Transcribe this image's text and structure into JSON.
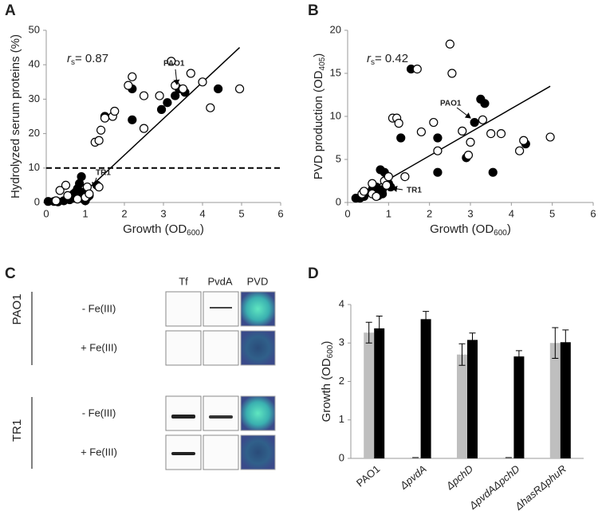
{
  "panel_labels": [
    "A",
    "B",
    "C",
    "D"
  ],
  "chart_data": [
    {
      "type": "scatter",
      "y_label": "Hydrolyzed serum proteins (%)",
      "x_label": [
        "Growth (OD",
        "600",
        ")"
      ],
      "stat": [
        "r",
        "s",
        "= 0.87"
      ],
      "annotations": [
        "PAO1",
        "TR1"
      ],
      "xlim": [
        0,
        6
      ],
      "xticks": [
        0,
        1,
        2,
        3,
        4,
        5,
        6
      ],
      "ylim": [
        0,
        50
      ],
      "yticks": [
        0,
        10,
        20,
        30,
        40,
        50
      ],
      "hline": 10,
      "fit_line": {
        "x": [
          0.7,
          4.95
        ],
        "y": [
          0,
          45
        ]
      },
      "series": [
        {
          "color": "#000000",
          "edgecolor": "#000000",
          "x": [
            0.05,
            0.2,
            0.3,
            0.45,
            0.6,
            0.7,
            0.75,
            0.8,
            0.85,
            0.9,
            0.9,
            0.95,
            1.0,
            1.05,
            1.1,
            1.3,
            1.5,
            2.2,
            2.2,
            2.95,
            3.1,
            3.3,
            3.4,
            3.55,
            4.4,
            0.8,
            0.7,
            1.0
          ],
          "values": [
            0.3,
            0.3,
            0.2,
            0.5,
            0.8,
            2,
            3,
            4,
            5.5,
            7.5,
            3,
            1,
            2,
            1.5,
            2,
            5,
            25,
            24,
            33,
            27,
            29,
            31,
            33,
            32,
            33,
            1.5,
            2.5,
            0.5
          ]
        },
        {
          "color": "#ffffff",
          "edgecolor": "#000000",
          "x": [
            0.25,
            0.35,
            0.5,
            0.55,
            0.8,
            1.0,
            1.05,
            1.25,
            1.35,
            1.4,
            1.5,
            1.7,
            1.75,
            2.1,
            2.2,
            2.5,
            2.5,
            2.9,
            3.2,
            3.3,
            3.5,
            3.7,
            4.0,
            4.2,
            4.95,
            1.35,
            1.1
          ],
          "values": [
            0.5,
            3.5,
            5,
            2,
            1,
            1.5,
            4.5,
            17.5,
            18,
            21,
            24.5,
            25,
            26.5,
            34,
            36.5,
            21.5,
            31,
            31,
            41,
            34,
            33,
            37.5,
            35,
            27.5,
            33,
            4.5,
            2.5
          ]
        }
      ]
    },
    {
      "type": "scatter",
      "y_label": [
        "PVD production (OD",
        "405",
        ")"
      ],
      "x_label": [
        "Growth (OD",
        "600",
        ")"
      ],
      "stat": [
        "r",
        "s",
        "= 0.42"
      ],
      "annotations": [
        "PAO1",
        "TR1"
      ],
      "xlim": [
        0,
        6
      ],
      "xticks": [
        0,
        1,
        2,
        3,
        4,
        5,
        6
      ],
      "ylim": [
        0,
        20
      ],
      "yticks": [
        0,
        5,
        10,
        15,
        20
      ],
      "fit_line": {
        "x": [
          0.2,
          4.95
        ],
        "y": [
          0.5,
          13.5
        ]
      },
      "series": [
        {
          "color": "#000000",
          "edgecolor": "#000000",
          "x": [
            0.2,
            0.3,
            0.4,
            0.6,
            0.7,
            0.75,
            0.8,
            0.85,
            0.9,
            1.0,
            1.05,
            0.85,
            1.3,
            1.55,
            2.2,
            2.2,
            2.9,
            3.1,
            3.25,
            3.35,
            3.55,
            4.35,
            0.75
          ],
          "values": [
            0.5,
            0.5,
            0.7,
            1.5,
            1.8,
            1,
            3.8,
            1.5,
            3.5,
            2.2,
            1.8,
            1,
            7.5,
            15.5,
            3.5,
            7.5,
            5.2,
            9.3,
            12,
            11.5,
            3.5,
            6.8,
            0.8
          ]
        },
        {
          "color": "#ffffff",
          "edgecolor": "#000000",
          "x": [
            0.35,
            0.4,
            0.6,
            0.7,
            0.9,
            1.0,
            0.95,
            1.1,
            1.2,
            1.25,
            1.4,
            1.7,
            1.8,
            2.1,
            2.2,
            2.5,
            2.55,
            2.8,
            2.95,
            3.0,
            3.3,
            3.5,
            3.75,
            4.2,
            4.3,
            4.95,
            0.6
          ],
          "values": [
            1,
            1.3,
            1,
            0.7,
            2.5,
            3,
            2,
            9.8,
            9.8,
            9.2,
            3,
            15.5,
            8.2,
            9.3,
            6,
            18.4,
            15,
            8.3,
            5.5,
            7,
            9.6,
            8,
            8,
            6,
            7.2,
            7.6,
            2.2
          ]
        }
      ]
    },
    {
      "type": "bar",
      "y_label": [
        "Growth (OD",
        "600",
        ")"
      ],
      "categories": [
        "PAO1",
        "ΔpvdA",
        "ΔpchD",
        "ΔpvdAΔpchD",
        "ΔhasRΔphuR"
      ],
      "ylim": [
        0,
        4
      ],
      "yticks": [
        0,
        1,
        2,
        3,
        4
      ],
      "series": [
        {
          "color": "#bfbfbf",
          "values": [
            3.27,
            0.02,
            2.7,
            0.02,
            3.0
          ],
          "errors": [
            0.27,
            0,
            0.28,
            0,
            0.4
          ]
        },
        {
          "color": "#000000",
          "values": [
            3.38,
            3.62,
            3.08,
            2.65,
            3.02
          ],
          "errors": [
            0.32,
            0.2,
            0.18,
            0.15,
            0.32
          ]
        }
      ]
    }
  ],
  "blots": {
    "columns": [
      "Tf",
      "PvdA",
      "PVD"
    ],
    "strains": [
      {
        "name": "PAO1",
        "conditions": [
          "- Fe(III)",
          "+ Fe(III)"
        ]
      },
      {
        "name": "TR1",
        "conditions": [
          "- Fe(III)",
          "+ Fe(III)"
        ]
      }
    ]
  }
}
